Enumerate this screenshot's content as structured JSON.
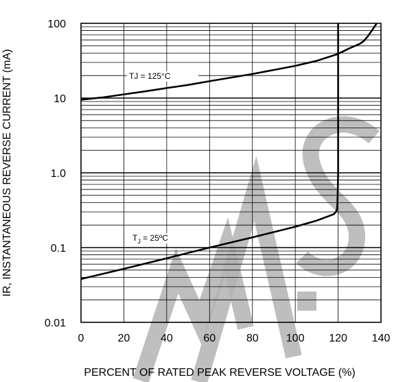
{
  "chart_data": {
    "type": "line",
    "xlabel": "PERCENT OF RATED PEAK REVERSE VOLTAGE (%)",
    "ylabel": "IR, INSTANTANEOUS REVERSE CURRENT (mA)",
    "xlim": [
      0,
      140
    ],
    "ylim": [
      0.01,
      100
    ],
    "y_scale": "log",
    "grid": true,
    "x_ticks": [
      "0",
      "20",
      "40",
      "60",
      "80",
      "100",
      "120",
      "140"
    ],
    "y_ticks": [
      "0.01",
      "0.1",
      "1.0",
      "10",
      "100"
    ],
    "watermark_color": "#b3b3b3",
    "series": [
      {
        "label_main": "TJ = 125°C",
        "label_sub": "",
        "label_tail": "",
        "x": [
          0,
          10,
          20,
          30,
          40,
          50,
          60,
          70,
          80,
          90,
          100,
          110,
          120,
          125,
          128,
          130,
          132,
          134,
          136,
          138
        ],
        "y": [
          9.5,
          10.2,
          11.2,
          12.3,
          13.6,
          15.0,
          16.8,
          18.8,
          21.0,
          23.8,
          27.0,
          31.5,
          39,
          46,
          50,
          53,
          58,
          68,
          82,
          100
        ]
      },
      {
        "label_main": "T",
        "label_sub": "J",
        "label_tail": " = 25ºC",
        "x": [
          0,
          20,
          40,
          60,
          80,
          100,
          110,
          115,
          118,
          119,
          119.5,
          119.7,
          119.8,
          120,
          120,
          120
        ],
        "y": [
          0.038,
          0.052,
          0.072,
          0.1,
          0.137,
          0.19,
          0.23,
          0.26,
          0.28,
          0.3,
          0.33,
          0.4,
          0.5,
          1.0,
          10,
          100
        ]
      }
    ]
  }
}
